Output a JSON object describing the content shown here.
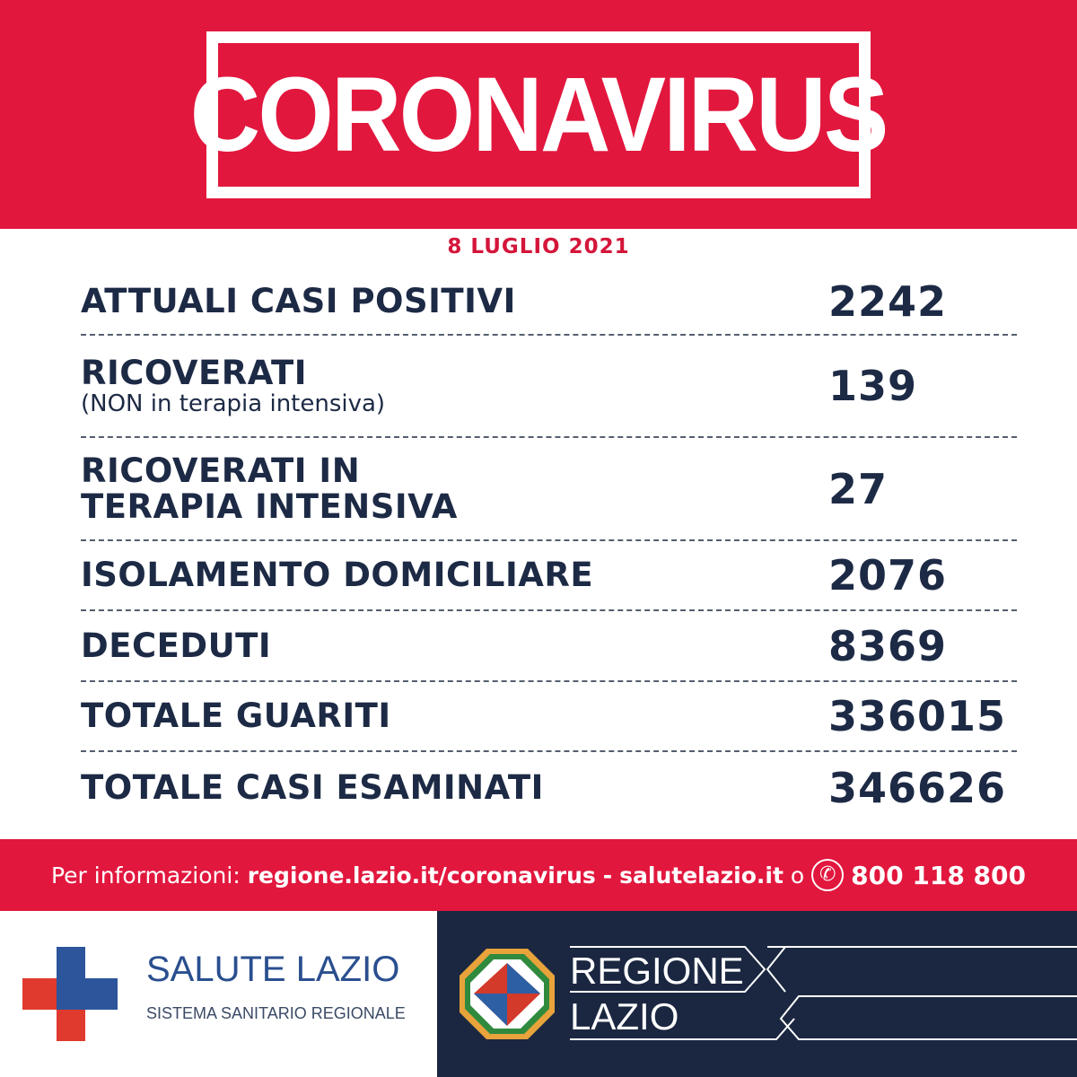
{
  "header": {
    "title": "CORONAVIRUS",
    "date": "8 LUGLIO 2021"
  },
  "stats": [
    {
      "label": "ATTUALI CASI POSITIVI",
      "value": "2242"
    },
    {
      "label": "RICOVERATI",
      "sublabel": "(NON in terapia intensiva)",
      "value": "139"
    },
    {
      "label": "RICOVERATI IN",
      "label2": "TERAPIA INTENSIVA",
      "value": "27"
    },
    {
      "label": "ISOLAMENTO DOMICILIARE",
      "value": "2076"
    },
    {
      "label": "DECEDUTI",
      "value": "8369"
    },
    {
      "label": "TOTALE GUARITI",
      "value": "336015"
    },
    {
      "label": "TOTALE CASI ESAMINATI",
      "value": "346626"
    }
  ],
  "info": {
    "prefix": "Per informazioni:",
    "link1": "regione.lazio.it/coronavirus",
    "sep": "-",
    "link2": "salutelazio.it",
    "or": "o",
    "phone": "800 118 800",
    "phone_icon": "phone-icon"
  },
  "footer": {
    "salute_title": "SALUTE LAZIO",
    "salute_sub": "SISTEMA SANITARIO REGIONALE",
    "regione_line1": "REGIONE",
    "regione_line2": "LAZIO"
  },
  "colors": {
    "red": "#e2173e",
    "navy": "#1b2741",
    "text": "#1d2a45"
  }
}
